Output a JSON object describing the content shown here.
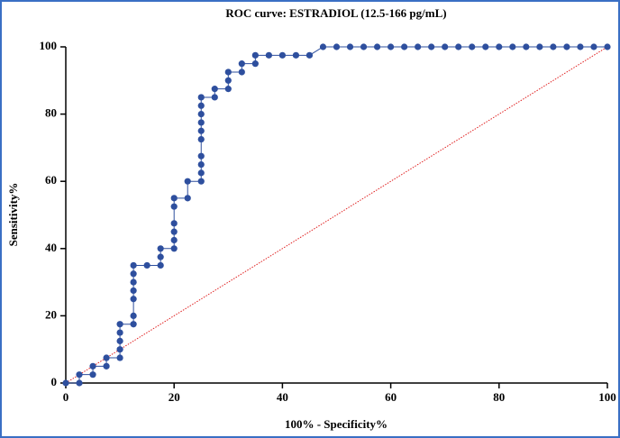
{
  "chart_data": {
    "type": "line",
    "title": "ROC curve: ESTRADIOL (12.5-166 pg/mL)",
    "x_label": "100% - Specificity%",
    "y_label": "Sensitivity%",
    "series": [
      {
        "color": "#2e4f9e",
        "x": [
          0,
          2.5,
          2.5,
          5,
          5,
          7.5,
          7.5,
          10,
          10,
          10,
          10,
          10,
          12.5,
          12.5,
          12.5,
          12.5,
          12.5,
          12.5,
          12.5,
          15,
          17.5,
          17.5,
          17.5,
          20,
          20,
          20,
          20,
          20,
          20,
          22.5,
          22.5,
          25,
          25,
          25,
          25,
          25,
          25,
          25,
          25,
          25,
          25,
          27.5,
          27.5,
          30,
          30,
          30,
          32.5,
          32.5,
          35,
          35,
          37.5,
          40,
          42.5,
          45,
          47.5,
          50,
          52.5,
          55,
          57.5,
          60,
          62.5,
          65,
          67.5,
          70,
          72.5,
          75,
          77.5,
          80,
          82.5,
          85,
          87.5,
          90,
          92.5,
          95,
          97.5,
          100
        ],
        "values": [
          0,
          0,
          2.5,
          2.5,
          5,
          5,
          7.5,
          7.5,
          10,
          12.5,
          15,
          17.5,
          17.5,
          20,
          25,
          27.5,
          30,
          32.5,
          35,
          35,
          35,
          37.5,
          40,
          40,
          42.5,
          45,
          47.5,
          52.5,
          55,
          55,
          60,
          60,
          62.5,
          65,
          67.5,
          72.5,
          75,
          77.5,
          80,
          82.5,
          85,
          85,
          87.5,
          87.5,
          90,
          92.5,
          92.5,
          95,
          95,
          97.5,
          97.5,
          97.5,
          97.5,
          97.5,
          100,
          100,
          100,
          100,
          100,
          100,
          100,
          100,
          100,
          100,
          100,
          100,
          100,
          100,
          100,
          100,
          100,
          100,
          100,
          100,
          100,
          100
        ]
      }
    ],
    "reference_color": "#e02020",
    "xlim": [
      0,
      100
    ],
    "ylim": [
      0,
      100
    ],
    "xticks": [
      0,
      20,
      40,
      60,
      80,
      100
    ],
    "yticks": [
      0,
      20,
      40,
      60,
      80,
      100
    ]
  }
}
